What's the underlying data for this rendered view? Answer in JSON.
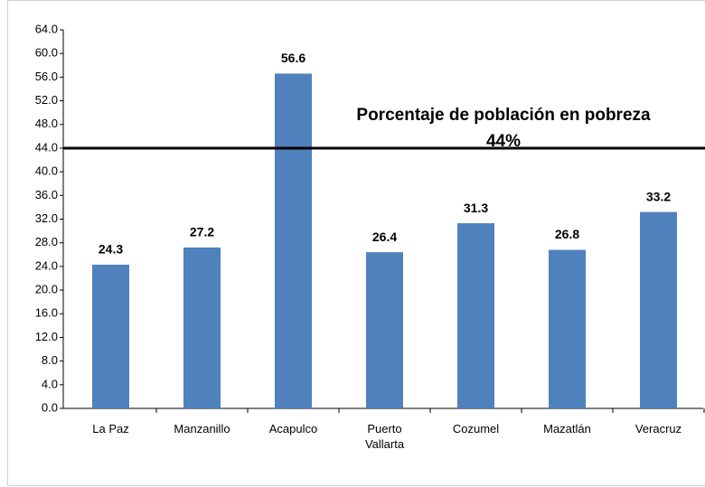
{
  "chart_data": {
    "type": "bar",
    "categories": [
      "La Paz",
      "Manzanillo",
      "Acapulco",
      "Puerto Vallarta",
      "Cozumel",
      "Mazatlán",
      "Veracruz"
    ],
    "values": [
      24.3,
      27.2,
      56.6,
      26.4,
      31.3,
      26.8,
      33.2
    ],
    "color": "#4f81bd",
    "ylim": [
      0,
      64
    ],
    "yticks": [
      {
        "value": 0,
        "label": "0.0"
      },
      {
        "value": 4,
        "label": "4.0"
      },
      {
        "value": 8,
        "label": "8.0"
      },
      {
        "value": 12,
        "label": "12.0"
      },
      {
        "value": 16,
        "label": "16.0"
      },
      {
        "value": 20,
        "label": "20.0"
      },
      {
        "value": 24,
        "label": "24.0"
      },
      {
        "value": 28,
        "label": "28.0"
      },
      {
        "value": 32,
        "label": "32.0"
      },
      {
        "value": 36,
        "label": "36.0"
      },
      {
        "value": 40,
        "label": "40.0"
      },
      {
        "value": 44,
        "label": "44.0"
      },
      {
        "value": 48,
        "label": "48.0"
      },
      {
        "value": 52,
        "label": "52.0"
      },
      {
        "value": 56,
        "label": "56.0"
      },
      {
        "value": 60,
        "label": "60.0"
      },
      {
        "value": 64,
        "label": "64.0"
      }
    ],
    "grid": false,
    "reference_line": {
      "value": 44,
      "label": "Porcentaje de población en pobreza",
      "value_label": "44%",
      "color": "#000000"
    }
  }
}
